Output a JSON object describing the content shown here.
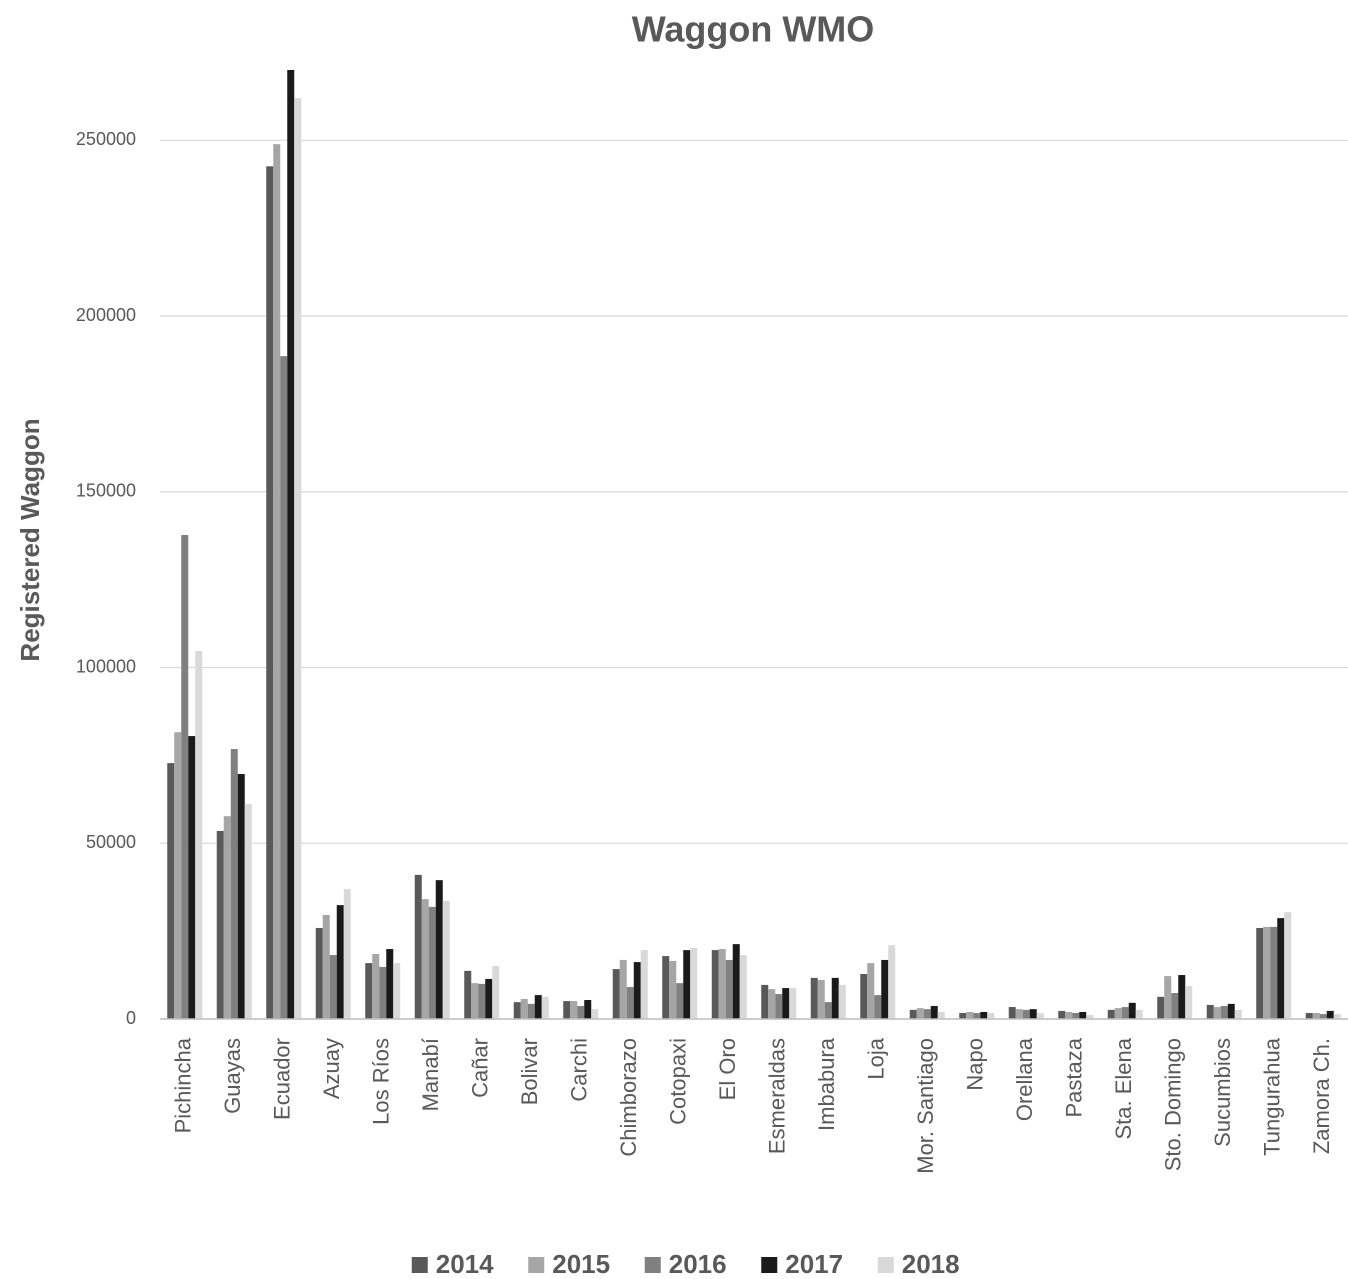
{
  "chart_data": {
    "type": "bar",
    "title": "Waggon WMO",
    "y_axis_label": "Registered Waggon",
    "categories": [
      "Pichincha",
      "Guayas",
      "Ecuador",
      "Azuay",
      "Los Ríos",
      "Manabí",
      "Cañar",
      "Bolivar",
      "Carchi",
      "Chimborazo",
      "Cotopaxi",
      "El Oro",
      "Esmeraldas",
      "Imbabura",
      "Loja",
      "Mor. Santiago",
      "Napo",
      "Orellana",
      "Pastaza",
      "Sta. Elena",
      "Sto. Domingo",
      "Sucumbios",
      "Tungurahua",
      "Zamora Ch."
    ],
    "series": [
      {
        "name": "2014",
        "color": "#595959",
        "values": [
          72800,
          53500,
          242600,
          25900,
          15900,
          41000,
          13700,
          4800,
          5100,
          14200,
          17900,
          19600,
          9700,
          11700,
          12800,
          2600,
          1700,
          3400,
          2300,
          2600,
          6300,
          4000,
          25900,
          1700
        ]
      },
      {
        "name": "2015",
        "color": "#a6a6a6",
        "values": [
          81600,
          57700,
          248900,
          29600,
          18500,
          34100,
          10200,
          5700,
          5100,
          16800,
          16500,
          19900,
          8500,
          11100,
          15900,
          3100,
          2000,
          2800,
          2000,
          3100,
          12200,
          3400,
          26200,
          1700
        ]
      },
      {
        "name": "2016",
        "color": "#808080",
        "values": [
          137700,
          76800,
          188600,
          18200,
          14800,
          31900,
          10000,
          4300,
          3700,
          9100,
          10200,
          16800,
          7100,
          4800,
          6800,
          2800,
          1700,
          2600,
          1700,
          3400,
          7400,
          3700,
          26200,
          1400
        ]
      },
      {
        "name": "2017",
        "color": "#1a1a1a",
        "values": [
          80500,
          69700,
          270000,
          32400,
          19900,
          39500,
          11400,
          6800,
          5400,
          16200,
          19600,
          21300,
          8800,
          11700,
          16800,
          3700,
          2000,
          2800,
          2000,
          4600,
          12500,
          4300,
          28700,
          2300
        ]
      },
      {
        "name": "2018",
        "color": "#d9d9d9",
        "values": [
          104700,
          61200,
          262000,
          37000,
          15900,
          33600,
          15100,
          6300,
          2800,
          19600,
          20200,
          18200,
          8800,
          9700,
          21000,
          2000,
          1700,
          1700,
          1100,
          2600,
          9400,
          2600,
          30400,
          1400
        ]
      }
    ],
    "ylim": [
      0,
      270000
    ],
    "yticks": [
      0,
      50000,
      100000,
      150000,
      200000,
      250000
    ],
    "grid": true,
    "legend": "bottom"
  }
}
